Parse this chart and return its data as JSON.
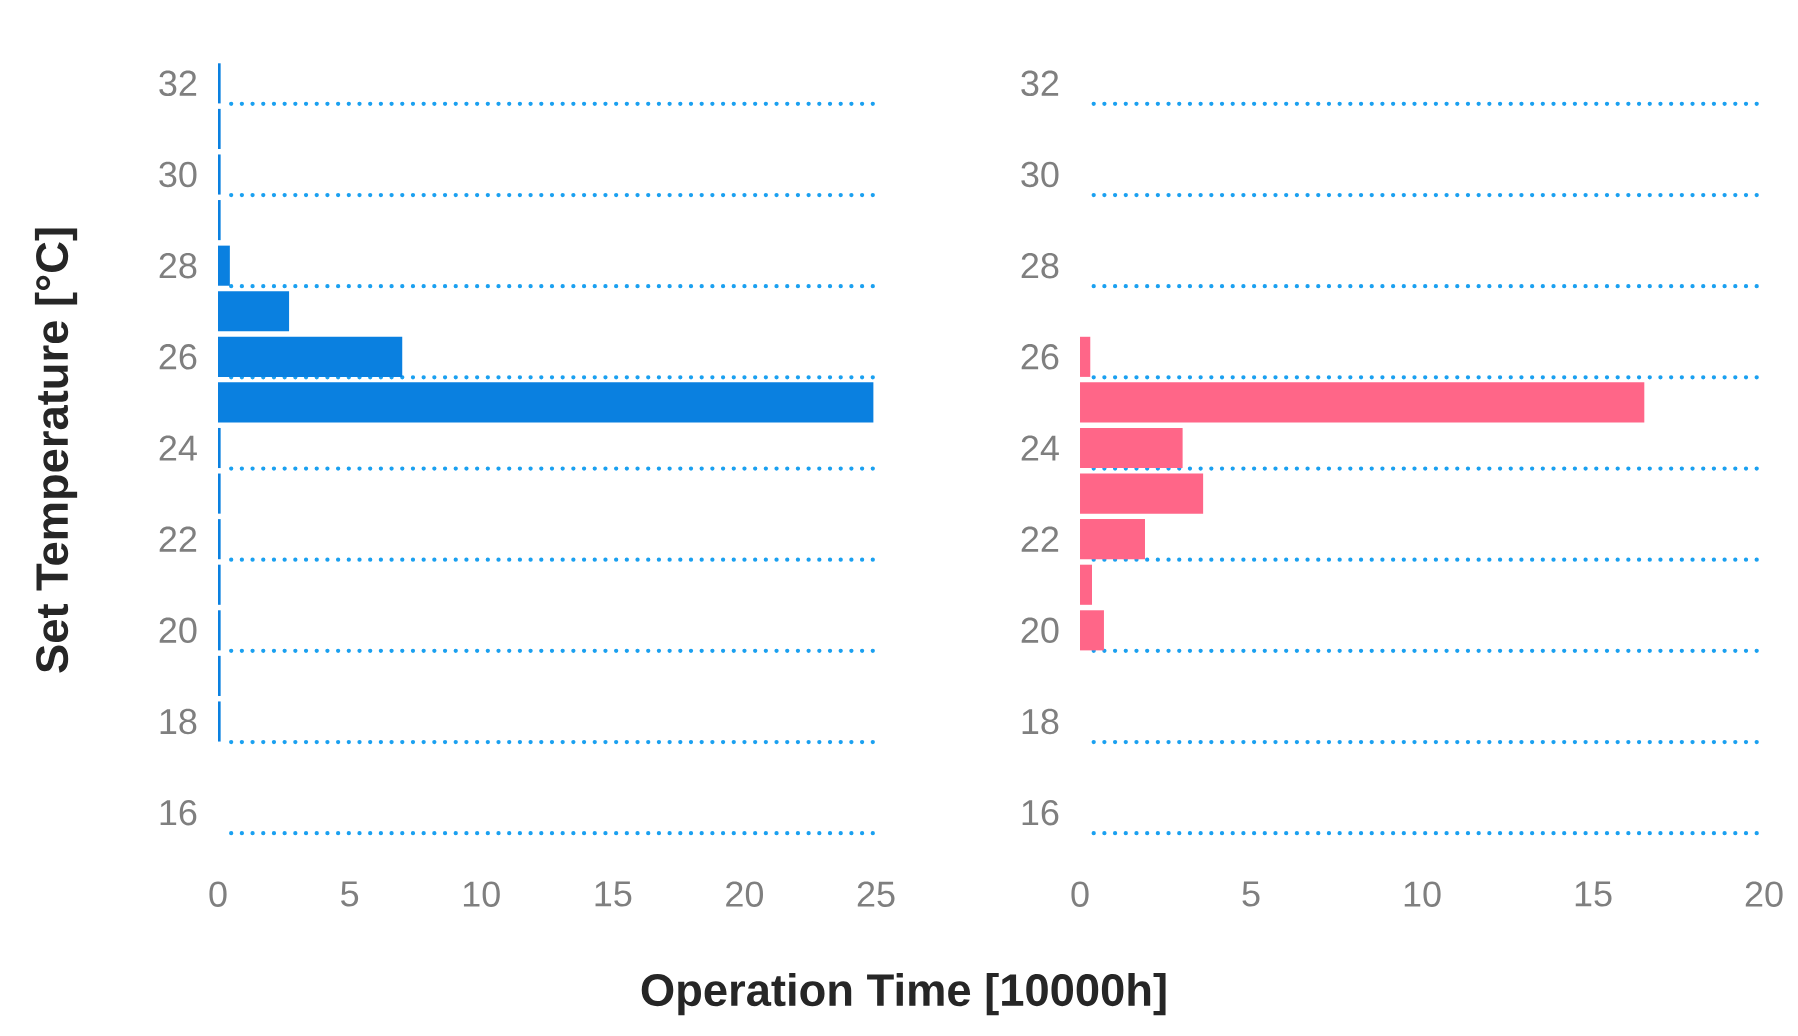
{
  "chart_data": [
    {
      "type": "bar",
      "orientation": "horizontal",
      "ylabel": "Set Temperature [°C]",
      "xlabel": "Operation Time [10000h]",
      "categories": [
        "32",
        null,
        "30",
        null,
        "28",
        null,
        "26",
        null,
        "24",
        null,
        "22",
        null,
        "20",
        null,
        "18",
        null,
        "16"
      ],
      "values": [
        0.1,
        0.1,
        0.1,
        0.1,
        0.45,
        2.7,
        7.0,
        24.9,
        0.1,
        0.1,
        0.1,
        0.1,
        0.1,
        0.1,
        0.1,
        null,
        null
      ],
      "color": "#0a80e0",
      "xlim": [
        0,
        25
      ],
      "xticks": [
        0,
        5,
        10,
        15,
        20,
        25
      ],
      "grid": true
    },
    {
      "type": "bar",
      "orientation": "horizontal",
      "categories": [
        "32",
        null,
        "30",
        null,
        "28",
        null,
        "26",
        null,
        "24",
        null,
        "22",
        null,
        "20",
        null,
        "18",
        null,
        "16"
      ],
      "values": [
        null,
        null,
        null,
        null,
        null,
        null,
        0.3,
        16.5,
        3.0,
        3.6,
        1.9,
        0.35,
        0.7,
        null,
        null,
        null,
        null
      ],
      "color": "#ff6688",
      "xlim": [
        0,
        20
      ],
      "xticks": [
        0,
        5,
        10,
        15,
        20
      ],
      "grid": true
    }
  ]
}
